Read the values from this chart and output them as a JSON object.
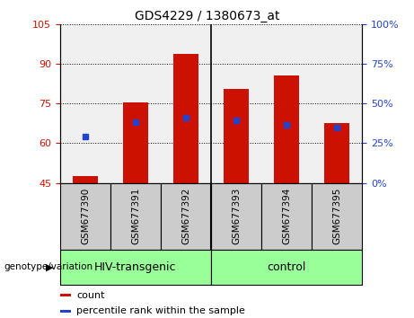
{
  "title": "GDS4229 / 1380673_at",
  "categories": [
    "GSM677390",
    "GSM677391",
    "GSM677392",
    "GSM677393",
    "GSM677394",
    "GSM677395"
  ],
  "bar_bottom": 45,
  "bar_tops": [
    47.5,
    75.5,
    93.5,
    80.5,
    85.5,
    67.5
  ],
  "blue_markers": [
    62.5,
    68.0,
    69.5,
    68.5,
    67.0,
    66.0
  ],
  "ylim_left": [
    45,
    105
  ],
  "ylim_right": [
    0,
    100
  ],
  "yticks_left": [
    45,
    60,
    75,
    90,
    105
  ],
  "yticks_right": [
    0,
    25,
    50,
    75,
    100
  ],
  "bar_color": "#cc1100",
  "blue_color": "#2244cc",
  "plot_bg": "#f0f0f0",
  "groups": [
    {
      "label": "HIV-transgenic",
      "start": 0,
      "end": 3
    },
    {
      "label": "control",
      "start": 3,
      "end": 6
    }
  ],
  "group_color": "#99ff99",
  "group_border_color": "#000000",
  "tick_box_color": "#cccccc",
  "left_tick_color": "#cc1100",
  "right_tick_color": "#2244cc",
  "legend_items": [
    {
      "label": "count",
      "color": "#cc1100"
    },
    {
      "label": "percentile rank within the sample",
      "color": "#2244cc"
    }
  ],
  "bar_width": 0.5,
  "separator_index": 2.5,
  "n_bars": 6
}
